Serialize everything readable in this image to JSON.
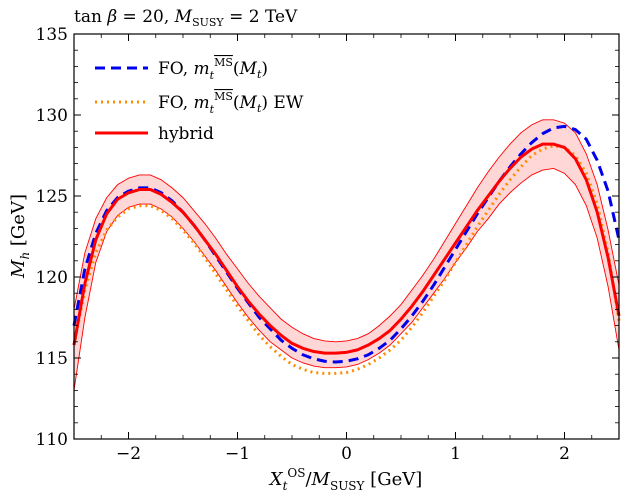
{
  "chart_data": {
    "type": "line",
    "title": "tan β = 20, M_SUSY = 2 TeV",
    "xlabel": "X_t^OS / M_SUSY [GeV]",
    "ylabel": "M_h [GeV]",
    "xlim": [
      -2.5,
      2.5
    ],
    "ylim": [
      110,
      135
    ],
    "xticks": [
      -2,
      -1,
      0,
      1,
      2
    ],
    "yticks": [
      110,
      115,
      120,
      125,
      130,
      135
    ],
    "grid": false,
    "legend_position": "top-left",
    "x": [
      -2.5,
      -2.4,
      -2.3,
      -2.2,
      -2.1,
      -2.0,
      -1.9,
      -1.8,
      -1.7,
      -1.6,
      -1.5,
      -1.4,
      -1.3,
      -1.2,
      -1.1,
      -1.0,
      -0.9,
      -0.8,
      -0.7,
      -0.6,
      -0.5,
      -0.4,
      -0.3,
      -0.2,
      -0.1,
      0.0,
      0.1,
      0.2,
      0.3,
      0.4,
      0.5,
      0.6,
      0.7,
      0.8,
      0.9,
      1.0,
      1.1,
      1.2,
      1.3,
      1.4,
      1.5,
      1.6,
      1.7,
      1.8,
      1.9,
      2.0,
      2.1,
      2.2,
      2.3,
      2.4,
      2.5
    ],
    "series": [
      {
        "name": "FO, m_t^MS(M_t)",
        "style": "dashed",
        "color": "#0000ee",
        "values": [
          117.0,
          120.5,
          122.7,
          124.1,
          124.9,
          125.3,
          125.5,
          125.5,
          125.2,
          124.7,
          124.0,
          123.2,
          122.3,
          121.3,
          120.3,
          119.3,
          118.4,
          117.5,
          116.8,
          116.1,
          115.6,
          115.2,
          114.95,
          114.8,
          114.75,
          114.8,
          114.95,
          115.2,
          115.6,
          116.1,
          116.8,
          117.6,
          118.5,
          119.5,
          120.6,
          121.7,
          122.8,
          123.9,
          124.9,
          125.9,
          126.8,
          127.6,
          128.3,
          128.85,
          129.2,
          129.3,
          129.1,
          128.5,
          127.2,
          125.3,
          122.3
        ]
      },
      {
        "name": "FO, m_t^MS(M_t) EW",
        "style": "dotted",
        "color": "#ff8c00",
        "values": [
          115.8,
          119.2,
          121.5,
          122.9,
          123.7,
          124.2,
          124.4,
          124.4,
          124.1,
          123.6,
          122.9,
          122.1,
          121.2,
          120.2,
          119.2,
          118.2,
          117.3,
          116.4,
          115.7,
          115.1,
          114.6,
          114.3,
          114.1,
          114.05,
          114.05,
          114.1,
          114.3,
          114.6,
          115.0,
          115.5,
          116.1,
          116.9,
          117.8,
          118.8,
          119.8,
          120.9,
          122.0,
          123.1,
          124.1,
          125.1,
          126.0,
          126.8,
          127.5,
          127.9,
          128.1,
          128.0,
          127.5,
          126.4,
          124.5,
          121.5,
          117.3
        ]
      },
      {
        "name": "hybrid",
        "style": "solid",
        "color": "#ff0000",
        "values": [
          115.8,
          119.6,
          122.3,
          123.9,
          124.8,
          125.2,
          125.4,
          125.4,
          125.1,
          124.6,
          124.0,
          123.2,
          122.3,
          121.4,
          120.4,
          119.4,
          118.5,
          117.7,
          117.0,
          116.4,
          115.9,
          115.6,
          115.4,
          115.3,
          115.3,
          115.35,
          115.5,
          115.8,
          116.2,
          116.7,
          117.4,
          118.2,
          119.1,
          120.1,
          121.1,
          122.1,
          123.1,
          124.1,
          125.0,
          125.9,
          126.7,
          127.4,
          127.9,
          128.2,
          128.2,
          128.0,
          127.3,
          126.0,
          124.0,
          121.2,
          117.6
        ]
      }
    ],
    "band": {
      "series": "hybrid",
      "lower": [
        113.0,
        117.5,
        120.9,
        122.8,
        123.8,
        124.3,
        124.5,
        124.5,
        124.2,
        123.7,
        123.0,
        122.2,
        121.3,
        120.4,
        119.4,
        118.4,
        117.5,
        116.7,
        116.0,
        115.5,
        115.0,
        114.7,
        114.5,
        114.4,
        114.4,
        114.45,
        114.6,
        114.9,
        115.3,
        115.8,
        116.5,
        117.2,
        118.1,
        119.0,
        119.9,
        120.9,
        121.8,
        122.8,
        123.6,
        124.5,
        125.2,
        125.8,
        126.3,
        126.6,
        126.7,
        126.4,
        125.7,
        124.4,
        122.4,
        119.4,
        115.5
      ],
      "upper": [
        118.0,
        121.5,
        123.6,
        124.9,
        125.7,
        126.1,
        126.3,
        126.3,
        126.0,
        125.5,
        124.9,
        124.1,
        123.3,
        122.4,
        121.4,
        120.5,
        119.6,
        118.8,
        118.1,
        117.4,
        116.9,
        116.5,
        116.2,
        116.05,
        116.0,
        116.05,
        116.2,
        116.5,
        117.0,
        117.6,
        118.3,
        119.2,
        120.1,
        121.1,
        122.2,
        123.3,
        124.4,
        125.5,
        126.5,
        127.4,
        128.2,
        128.9,
        129.4,
        129.7,
        129.7,
        129.5,
        128.9,
        127.6,
        125.7,
        122.9,
        119.5
      ]
    }
  }
}
